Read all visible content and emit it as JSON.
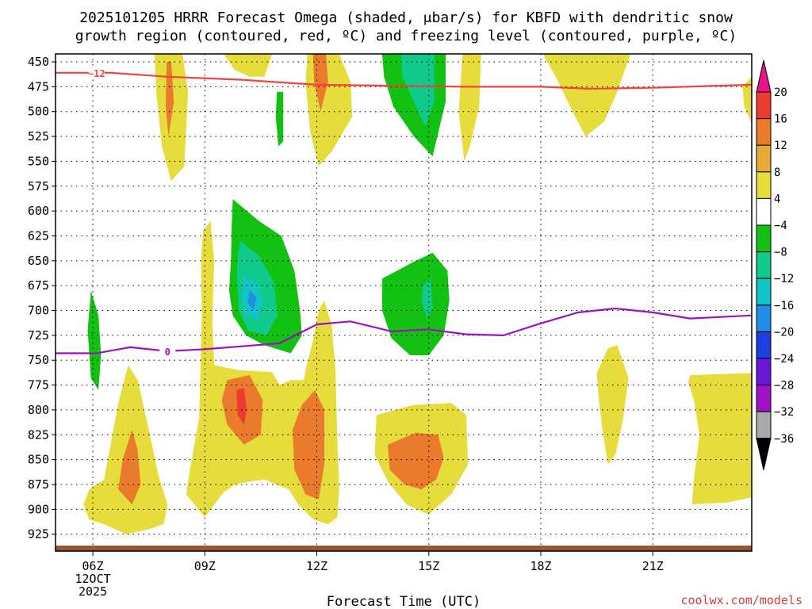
{
  "chart_data": {
    "type": "heatmap",
    "title_line1": "2025101205 HRRR Forecast Omega (shaded, μbar/s) for KBFD with dendritic snow",
    "title_line2": "growth region (contoured, red, ºC) and freezing level (contoured, purple, ºC)",
    "xlabel": "Forecast Time (UTC)",
    "credit": "coolwx.com/models",
    "x_range_hours": [
      5.0,
      23.65
    ],
    "y_range_mb": [
      442,
      942
    ],
    "x_ticks": [
      {
        "hour": 6,
        "label": "06Z",
        "sub1": "12OCT",
        "sub2": "2025"
      },
      {
        "hour": 9,
        "label": "09Z",
        "sub1": "",
        "sub2": ""
      },
      {
        "hour": 12,
        "label": "12Z",
        "sub1": "",
        "sub2": ""
      },
      {
        "hour": 15,
        "label": "15Z",
        "sub1": "",
        "sub2": ""
      },
      {
        "hour": 18,
        "label": "18Z",
        "sub1": "",
        "sub2": ""
      },
      {
        "hour": 21,
        "label": "21Z",
        "sub1": "",
        "sub2": ""
      }
    ],
    "y_ticks": [
      450,
      475,
      500,
      525,
      550,
      575,
      600,
      625,
      650,
      675,
      700,
      725,
      750,
      775,
      800,
      825,
      850,
      875,
      900,
      925
    ],
    "colorbar": {
      "levels": [
        "20",
        "16",
        "12",
        "8",
        "4",
        "−4",
        "−8",
        "−12",
        "−16",
        "−20",
        "−24",
        "−28",
        "−32",
        "−36"
      ],
      "colors": [
        "#e8128a",
        "#ee3b32",
        "#ea7b2c",
        "#e6ab34",
        "#e6dc3c",
        "#ffffff",
        "#12c112",
        "#0fca8a",
        "#12c4c4",
        "#1f8ce6",
        "#1e3fe0",
        "#6a16d8",
        "#a012c8",
        "#aaaaaa",
        "#000000"
      ]
    },
    "contours": [
      {
        "name": "dendritic-snow-growth",
        "color": "#f0443a",
        "label": "−12",
        "label_hour": 6.1,
        "points": [
          [
            5.0,
            461
          ],
          [
            6.5,
            461
          ],
          [
            8,
            465
          ],
          [
            10,
            468
          ],
          [
            12,
            473
          ],
          [
            14,
            474
          ],
          [
            16,
            475
          ],
          [
            18,
            475
          ],
          [
            19.3,
            477
          ],
          [
            21,
            476
          ],
          [
            23.65,
            473
          ]
        ]
      },
      {
        "name": "freezing-level",
        "color": "#9a12c2",
        "label": "0",
        "label_hour": 8.0,
        "points": [
          [
            5.0,
            743
          ],
          [
            6.1,
            743
          ],
          [
            7.0,
            737
          ],
          [
            8,
            741
          ],
          [
            9,
            739
          ],
          [
            10,
            736
          ],
          [
            11,
            733
          ],
          [
            12,
            714
          ],
          [
            12.9,
            711
          ],
          [
            14,
            721
          ],
          [
            15,
            719
          ],
          [
            16,
            724
          ],
          [
            17,
            725
          ],
          [
            18,
            713
          ],
          [
            19,
            702
          ],
          [
            20,
            698
          ],
          [
            21,
            702
          ],
          [
            22,
            708
          ],
          [
            23.65,
            705
          ]
        ]
      }
    ],
    "shaded_regions": [
      {
        "cls": "yellow",
        "pts": [
          [
            7.65,
            442
          ],
          [
            8.4,
            442
          ],
          [
            8.55,
            480
          ],
          [
            8.45,
            555
          ],
          [
            8.1,
            570
          ],
          [
            7.85,
            535
          ],
          [
            7.7,
            480
          ]
        ]
      },
      {
        "cls": "orange",
        "pts": [
          [
            7.98,
            450
          ],
          [
            8.1,
            450
          ],
          [
            8.17,
            490
          ],
          [
            8.03,
            525
          ],
          [
            7.95,
            495
          ]
        ]
      },
      {
        "cls": "green",
        "pts": [
          [
            10.93,
            480
          ],
          [
            11.1,
            480
          ],
          [
            11.1,
            530
          ],
          [
            10.97,
            535
          ],
          [
            10.9,
            505
          ]
        ]
      },
      {
        "cls": "yellow",
        "pts": [
          [
            9.5,
            442
          ],
          [
            10.8,
            442
          ],
          [
            10.6,
            465
          ],
          [
            10.2,
            465
          ],
          [
            9.8,
            458
          ]
        ]
      },
      {
        "cls": "yellow",
        "pts": [
          [
            11.75,
            442
          ],
          [
            12.6,
            442
          ],
          [
            12.9,
            470
          ],
          [
            12.95,
            505
          ],
          [
            12.4,
            540
          ],
          [
            12.05,
            555
          ],
          [
            11.82,
            520
          ],
          [
            11.7,
            470
          ]
        ]
      },
      {
        "cls": "orange",
        "pts": [
          [
            11.9,
            442
          ],
          [
            12.25,
            442
          ],
          [
            12.3,
            470
          ],
          [
            12.1,
            500
          ],
          [
            11.93,
            470
          ]
        ]
      },
      {
        "cls": "green",
        "pts": [
          [
            13.75,
            442
          ],
          [
            15.45,
            442
          ],
          [
            15.45,
            490
          ],
          [
            15.1,
            545
          ],
          [
            14.6,
            525
          ],
          [
            14.05,
            495
          ],
          [
            13.8,
            465
          ]
        ]
      },
      {
        "cls": "teal",
        "pts": [
          [
            14.25,
            442
          ],
          [
            15.15,
            442
          ],
          [
            15.15,
            490
          ],
          [
            14.9,
            515
          ],
          [
            14.6,
            490
          ],
          [
            14.3,
            465
          ]
        ]
      },
      {
        "cls": "yellow",
        "pts": [
          [
            15.9,
            442
          ],
          [
            16.4,
            442
          ],
          [
            16.35,
            495
          ],
          [
            16.1,
            535
          ],
          [
            15.95,
            550
          ],
          [
            15.8,
            500
          ]
        ]
      },
      {
        "cls": "yellow",
        "pts": [
          [
            18.05,
            442
          ],
          [
            20.4,
            442
          ],
          [
            20.05,
            480
          ],
          [
            19.7,
            510
          ],
          [
            19.2,
            525
          ],
          [
            18.85,
            500
          ],
          [
            18.4,
            465
          ]
        ]
      },
      {
        "cls": "yellow",
        "pts": [
          [
            23.4,
            475
          ],
          [
            23.65,
            465
          ],
          [
            23.65,
            512
          ],
          [
            23.45,
            495
          ]
        ]
      },
      {
        "cls": "green",
        "pts": [
          [
            9.75,
            588
          ],
          [
            10.45,
            610
          ],
          [
            11.05,
            625
          ],
          [
            11.4,
            660
          ],
          [
            11.55,
            700
          ],
          [
            11.6,
            725
          ],
          [
            11.3,
            743
          ],
          [
            10.6,
            735
          ],
          [
            10.1,
            725
          ],
          [
            9.75,
            705
          ],
          [
            9.65,
            680
          ],
          [
            9.7,
            650
          ],
          [
            9.72,
            615
          ]
        ]
      },
      {
        "cls": "teal",
        "pts": [
          [
            9.95,
            630
          ],
          [
            10.45,
            645
          ],
          [
            10.85,
            672
          ],
          [
            10.95,
            705
          ],
          [
            10.65,
            725
          ],
          [
            10.15,
            720
          ],
          [
            9.92,
            700
          ],
          [
            9.86,
            670
          ],
          [
            9.88,
            645
          ]
        ]
      },
      {
        "cls": "cyan",
        "pts": [
          [
            10.05,
            665
          ],
          [
            10.42,
            673
          ],
          [
            10.55,
            692
          ],
          [
            10.4,
            710
          ],
          [
            10.1,
            705
          ],
          [
            9.98,
            688
          ]
        ]
      },
      {
        "cls": "blue",
        "pts": [
          [
            10.2,
            679
          ],
          [
            10.38,
            687
          ],
          [
            10.3,
            700
          ],
          [
            10.15,
            692
          ]
        ]
      },
      {
        "cls": "green",
        "pts": [
          [
            14.55,
            652
          ],
          [
            15.1,
            642
          ],
          [
            15.5,
            660
          ],
          [
            15.55,
            690
          ],
          [
            15.4,
            725
          ],
          [
            15.0,
            745
          ],
          [
            14.5,
            745
          ],
          [
            14.0,
            728
          ],
          [
            13.75,
            700
          ],
          [
            13.75,
            668
          ]
        ]
      },
      {
        "cls": "teal",
        "pts": [
          [
            14.85,
            675
          ],
          [
            15.05,
            668
          ],
          [
            15.1,
            698
          ],
          [
            14.95,
            708
          ],
          [
            14.8,
            690
          ]
        ]
      },
      {
        "cls": "green",
        "pts": [
          [
            5.95,
            680
          ],
          [
            6.15,
            705
          ],
          [
            6.22,
            745
          ],
          [
            6.15,
            780
          ],
          [
            5.95,
            768
          ],
          [
            5.86,
            720
          ]
        ]
      },
      {
        "cls": "yellow",
        "pts": [
          [
            8.95,
            620
          ],
          [
            9.15,
            610
          ],
          [
            9.25,
            650
          ],
          [
            9.2,
            710
          ],
          [
            9.25,
            755
          ],
          [
            9.9,
            760
          ],
          [
            10.8,
            762
          ],
          [
            11.0,
            775
          ],
          [
            11.3,
            770
          ],
          [
            11.65,
            770
          ],
          [
            11.7,
            760
          ],
          [
            11.9,
            730
          ],
          [
            12.05,
            700
          ],
          [
            12.2,
            690
          ],
          [
            12.4,
            715
          ],
          [
            12.5,
            760
          ],
          [
            12.55,
            830
          ],
          [
            12.6,
            880
          ],
          [
            12.55,
            908
          ],
          [
            12.3,
            915
          ],
          [
            11.9,
            910
          ],
          [
            11.5,
            895
          ],
          [
            11.25,
            880
          ],
          [
            10.6,
            870
          ],
          [
            10.2,
            872
          ],
          [
            9.8,
            875
          ],
          [
            9.5,
            883
          ],
          [
            9.0,
            908
          ],
          [
            8.5,
            885
          ],
          [
            8.6,
            860
          ],
          [
            8.85,
            808
          ],
          [
            8.92,
            705
          ],
          [
            8.9,
            650
          ]
        ]
      },
      {
        "cls": "orange",
        "pts": [
          [
            9.6,
            770
          ],
          [
            10.2,
            765
          ],
          [
            10.55,
            790
          ],
          [
            10.5,
            825
          ],
          [
            10.05,
            835
          ],
          [
            9.6,
            815
          ],
          [
            9.45,
            790
          ]
        ]
      },
      {
        "cls": "red",
        "pts": [
          [
            9.85,
            780
          ],
          [
            10.05,
            778
          ],
          [
            10.12,
            800
          ],
          [
            10.05,
            815
          ],
          [
            9.88,
            805
          ]
        ]
      },
      {
        "cls": "orange",
        "pts": [
          [
            11.35,
            820
          ],
          [
            11.6,
            795
          ],
          [
            11.95,
            780
          ],
          [
            12.2,
            800
          ],
          [
            12.2,
            855
          ],
          [
            12.05,
            890
          ],
          [
            11.7,
            885
          ],
          [
            11.4,
            860
          ]
        ]
      },
      {
        "cls": "yellow",
        "pts": [
          [
            6.95,
            755
          ],
          [
            7.2,
            770
          ],
          [
            7.5,
            820
          ],
          [
            7.75,
            865
          ],
          [
            8.0,
            895
          ],
          [
            7.9,
            915
          ],
          [
            7.5,
            920
          ],
          [
            6.9,
            925
          ],
          [
            6.3,
            915
          ],
          [
            5.9,
            910
          ],
          [
            5.75,
            895
          ],
          [
            5.9,
            880
          ],
          [
            6.3,
            870
          ],
          [
            6.5,
            830
          ],
          [
            6.7,
            790
          ]
        ]
      },
      {
        "cls": "orange",
        "pts": [
          [
            7.05,
            820
          ],
          [
            7.2,
            840
          ],
          [
            7.28,
            875
          ],
          [
            7.05,
            895
          ],
          [
            6.68,
            880
          ],
          [
            6.8,
            850
          ]
        ]
      },
      {
        "cls": "yellow",
        "pts": [
          [
            13.6,
            805
          ],
          [
            14.6,
            795
          ],
          [
            15.6,
            793
          ],
          [
            16.0,
            805
          ],
          [
            16.05,
            855
          ],
          [
            15.6,
            885
          ],
          [
            15.0,
            905
          ],
          [
            14.4,
            895
          ],
          [
            13.9,
            872
          ],
          [
            13.55,
            845
          ]
        ]
      },
      {
        "cls": "orange",
        "pts": [
          [
            13.9,
            835
          ],
          [
            14.65,
            823
          ],
          [
            15.25,
            825
          ],
          [
            15.4,
            848
          ],
          [
            15.2,
            870
          ],
          [
            14.8,
            880
          ],
          [
            14.35,
            875
          ],
          [
            13.95,
            860
          ]
        ]
      },
      {
        "cls": "yellow",
        "pts": [
          [
            19.5,
            763
          ],
          [
            19.8,
            738
          ],
          [
            20.05,
            735
          ],
          [
            20.35,
            768
          ],
          [
            20.2,
            810
          ],
          [
            20.0,
            845
          ],
          [
            19.8,
            855
          ],
          [
            19.65,
            820
          ],
          [
            19.55,
            788
          ]
        ]
      },
      {
        "cls": "yellow",
        "pts": [
          [
            22.0,
            765
          ],
          [
            23.65,
            763
          ],
          [
            23.65,
            888
          ],
          [
            23.0,
            893
          ],
          [
            22.05,
            895
          ],
          [
            22.1,
            870
          ],
          [
            22.25,
            825
          ],
          [
            22.1,
            790
          ],
          [
            21.95,
            772
          ]
        ]
      }
    ]
  }
}
